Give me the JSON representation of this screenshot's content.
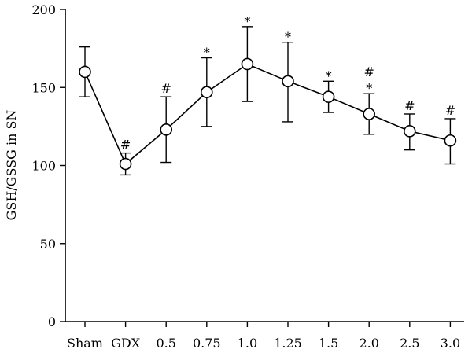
{
  "chart_data": {
    "type": "line",
    "ylabel": "GSH/GSSG in SN",
    "xlabel": "",
    "ylim": [
      0,
      200
    ],
    "yticks": [
      0,
      50,
      100,
      150,
      200
    ],
    "categories": [
      "Sham",
      "GDX",
      "0.5",
      "0.75",
      "1.0",
      "1.25",
      "1.5",
      "2.0",
      "2.5",
      "3.0"
    ],
    "series": [
      {
        "values": [
          160,
          101,
          123,
          147,
          165,
          154,
          144,
          133,
          122,
          116
        ],
        "error_upper": [
          176,
          108,
          144,
          169,
          189,
          179,
          154,
          146,
          133,
          130
        ],
        "error_lower": [
          144,
          94,
          102,
          125,
          141,
          128,
          134,
          120,
          110,
          101
        ]
      }
    ],
    "annotations": [
      [],
      [
        "#"
      ],
      [
        "#"
      ],
      [
        "*"
      ],
      [
        "*"
      ],
      [
        "*"
      ],
      [
        "*"
      ],
      [
        "*",
        "#"
      ],
      [
        "#"
      ],
      [
        "#"
      ]
    ],
    "marker": "open-circle",
    "grid": false
  }
}
